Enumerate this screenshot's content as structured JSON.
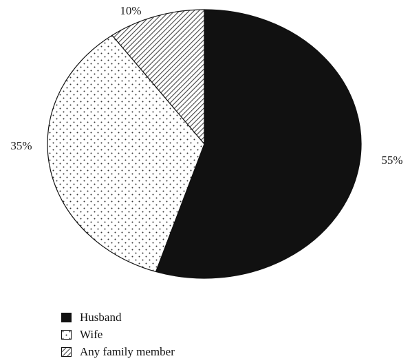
{
  "chart_data": {
    "type": "pie",
    "categories": [
      "Husband",
      "Wife",
      "Any family member"
    ],
    "values": [
      55,
      35,
      10
    ],
    "labels": [
      "55%",
      "35%",
      "10%"
    ],
    "patterns": [
      "solid-black",
      "dots",
      "diagonal-hatch"
    ],
    "start_angle": "12 o'clock",
    "direction": "clockwise",
    "legend_position": "bottom-left",
    "title": "",
    "xlabel": "",
    "ylabel": ""
  },
  "legend": {
    "items": [
      {
        "label": "Husband",
        "pattern": "solid-black"
      },
      {
        "label": "Wife",
        "pattern": "dots"
      },
      {
        "label": "Any family member",
        "pattern": "diagonal-hatch"
      }
    ]
  },
  "colors": {
    "fill_dark": "#111111",
    "fill_light": "#ffffff",
    "stroke": "#111111",
    "hatch": "#555555"
  }
}
